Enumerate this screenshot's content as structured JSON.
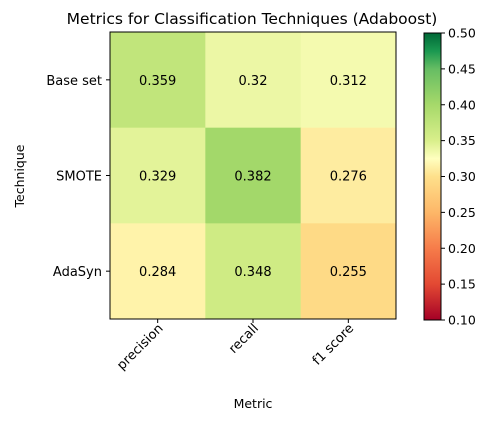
{
  "chart_data": {
    "type": "heatmap",
    "title": "Metrics for Classification Techniques (Adaboost)",
    "xlabel": "Metric",
    "ylabel": "Technique",
    "x_categories": [
      "precision",
      "recall",
      "f1 score"
    ],
    "y_categories": [
      "Base set",
      "SMOTE",
      "AdaSyn"
    ],
    "values": [
      [
        0.359,
        0.32,
        0.312
      ],
      [
        0.329,
        0.382,
        0.276
      ],
      [
        0.284,
        0.348,
        0.255
      ]
    ],
    "value_labels": [
      [
        "0.359",
        "0.32",
        "0.312"
      ],
      [
        "0.329",
        "0.382",
        "0.276"
      ],
      [
        "0.284",
        "0.348",
        "0.255"
      ]
    ],
    "colormap": "RdYlGn",
    "color_range": [
      0.1,
      0.5
    ],
    "colorbar_ticks": [
      "0.10",
      "0.15",
      "0.20",
      "0.25",
      "0.30",
      "0.35",
      "0.40",
      "0.45",
      "0.50"
    ],
    "grid": false,
    "legend": "colorbar-right"
  }
}
